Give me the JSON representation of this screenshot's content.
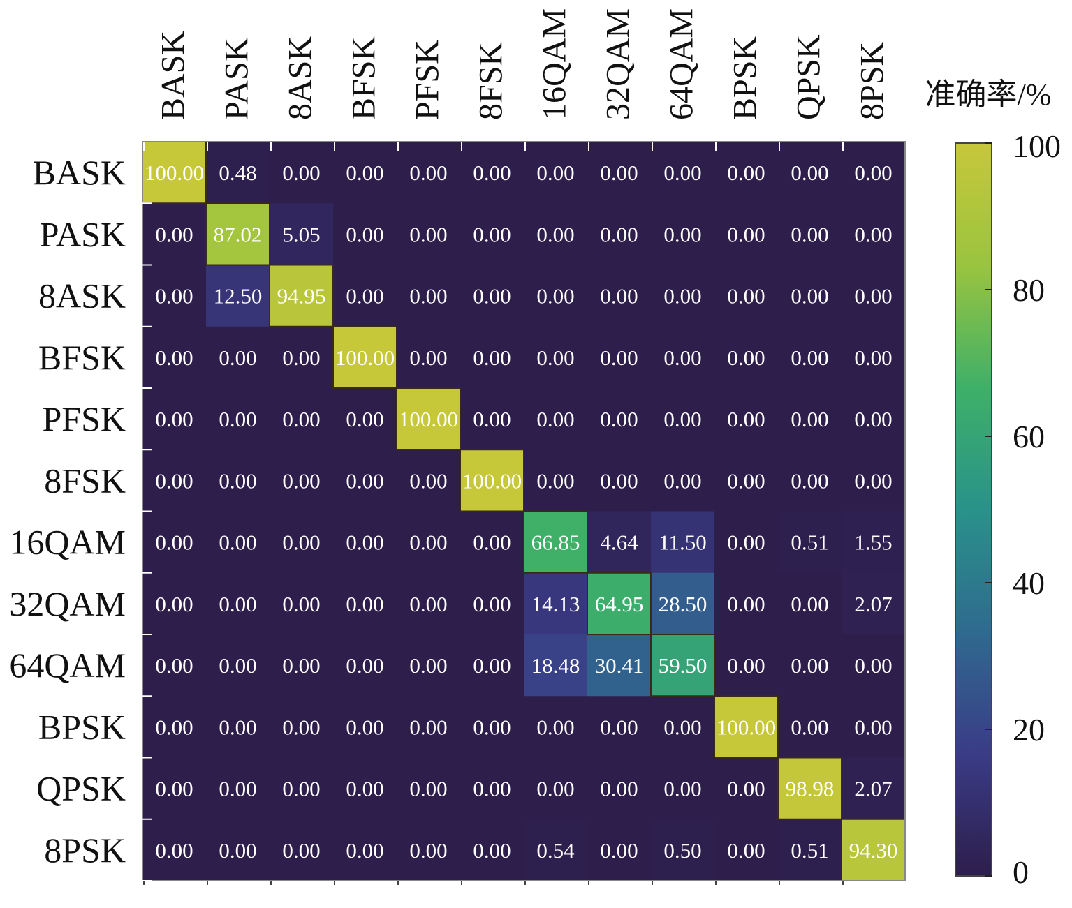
{
  "chart_data": {
    "type": "heatmap",
    "title": "",
    "x_categories": [
      "BASK",
      "PASK",
      "8ASK",
      "BFSK",
      "PFSK",
      "8FSK",
      "16QAM",
      "32QAM",
      "64QAM",
      "BPSK",
      "QPSK",
      "8PSK"
    ],
    "y_categories": [
      "BASK",
      "PASK",
      "8ASK",
      "BFSK",
      "PFSK",
      "8FSK",
      "16QAM",
      "32QAM",
      "64QAM",
      "BPSK",
      "QPSK",
      "8PSK"
    ],
    "cell_labels": [
      [
        "100.00",
        "0.48",
        "0.00",
        "0.00",
        "0.00",
        "0.00",
        "0.00",
        "0.00",
        "0.00",
        "0.00",
        "0.00",
        "0.00"
      ],
      [
        "0.00",
        "87.02",
        "5.05",
        "0.00",
        "0.00",
        "0.00",
        "0.00",
        "0.00",
        "0.00",
        "0.00",
        "0.00",
        "0.00"
      ],
      [
        "0.00",
        "12.50",
        "94.95",
        "0.00",
        "0.00",
        "0.00",
        "0.00",
        "0.00",
        "0.00",
        "0.00",
        "0.00",
        "0.00"
      ],
      [
        "0.00",
        "0.00",
        "0.00",
        "100.00",
        "0.00",
        "0.00",
        "0.00",
        "0.00",
        "0.00",
        "0.00",
        "0.00",
        "0.00"
      ],
      [
        "0.00",
        "0.00",
        "0.00",
        "0.00",
        "100.00",
        "0.00",
        "0.00",
        "0.00",
        "0.00",
        "0.00",
        "0.00",
        "0.00"
      ],
      [
        "0.00",
        "0.00",
        "0.00",
        "0.00",
        "0.00",
        "100.00",
        "0.00",
        "0.00",
        "0.00",
        "0.00",
        "0.00",
        "0.00"
      ],
      [
        "0.00",
        "0.00",
        "0.00",
        "0.00",
        "0.00",
        "0.00",
        "66.85",
        "4.64",
        "11.50",
        "0.00",
        "0.51",
        "1.55"
      ],
      [
        "0.00",
        "0.00",
        "0.00",
        "0.00",
        "0.00",
        "0.00",
        "14.13",
        "64.95",
        "28.50",
        "0.00",
        "0.00",
        "2.07"
      ],
      [
        "0.00",
        "0.00",
        "0.00",
        "0.00",
        "0.00",
        "0.00",
        "18.48",
        "30.41",
        "59.50",
        "0.00",
        "0.00",
        "0.00"
      ],
      [
        "0.00",
        "0.00",
        "0.00",
        "0.00",
        "0.00",
        "0.00",
        "0.00",
        "0.00",
        "0.00",
        "100.00",
        "0.00",
        "0.00"
      ],
      [
        "0.00",
        "0.00",
        "0.00",
        "0.00",
        "0.00",
        "0.00",
        "0.00",
        "0.00",
        "0.00",
        "0.00",
        "98.98",
        "2.07"
      ],
      [
        "0.00",
        "0.00",
        "0.00",
        "0.00",
        "0.00",
        "0.00",
        "0.54",
        "0.00",
        "0.50",
        "0.00",
        "0.51",
        "94.30"
      ]
    ],
    "colorbar": {
      "label": "准确率/%",
      "range": [
        0,
        100
      ],
      "ticks": [
        "0",
        "20",
        "40",
        "60",
        "80",
        "100"
      ]
    },
    "colormap": {
      "name": "viridis-like",
      "stops": [
        "#2d1e4c",
        "#3a3c86",
        "#2f6a8f",
        "#29928a",
        "#3fb068",
        "#9ac43f",
        "#c7c73a"
      ]
    }
  }
}
